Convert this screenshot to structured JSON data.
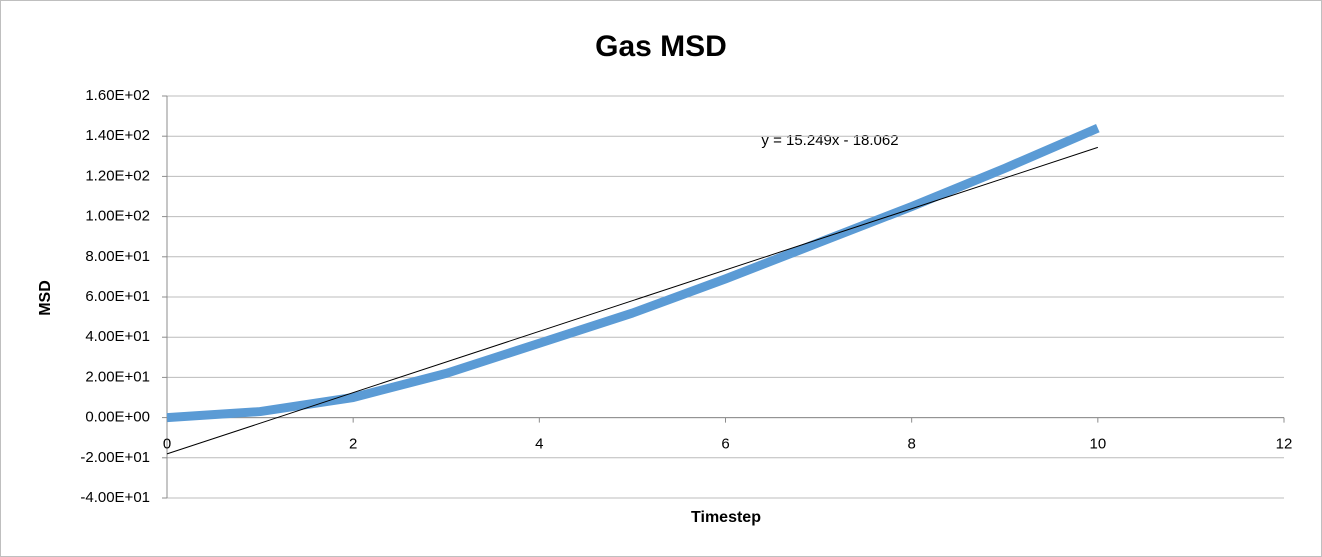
{
  "chart_data": {
    "type": "line",
    "title": "Gas MSD",
    "x_label": "Timestep",
    "y_label": "MSD",
    "x": [
      0,
      1,
      2,
      3,
      4,
      5,
      6,
      7,
      8,
      9,
      10
    ],
    "series": [
      {
        "color": "#5b9bd5",
        "values": [
          0,
          3,
          10,
          22,
          37,
          52,
          69,
          87,
          105,
          124,
          144
        ]
      }
    ],
    "trendline": {
      "equation": "y = 15.249x - 18.062",
      "slope": 15.249,
      "intercept": -18.062,
      "color": "#000000"
    },
    "xlim": [
      0,
      12
    ],
    "xticks": [
      0,
      2,
      4,
      6,
      8,
      10,
      12
    ],
    "ylim": [
      -40,
      160
    ],
    "yticks": [
      {
        "value": -40,
        "label": "-4.00E+01"
      },
      {
        "value": -20,
        "label": "-2.00E+01"
      },
      {
        "value": 0,
        "label": "0.00E+00"
      },
      {
        "value": 20,
        "label": "2.00E+01"
      },
      {
        "value": 40,
        "label": "4.00E+01"
      },
      {
        "value": 60,
        "label": "6.00E+01"
      },
      {
        "value": 80,
        "label": "8.00E+01"
      },
      {
        "value": 100,
        "label": "1.00E+02"
      },
      {
        "value": 120,
        "label": "1.20E+02"
      },
      {
        "value": 140,
        "label": "1.40E+02"
      },
      {
        "value": 160,
        "label": "1.60E+02"
      }
    ],
    "grid": true
  }
}
